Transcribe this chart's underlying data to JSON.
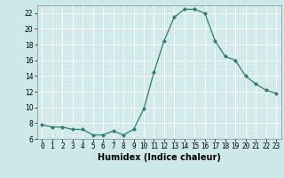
{
  "x": [
    0,
    1,
    2,
    3,
    4,
    5,
    6,
    7,
    8,
    9,
    10,
    11,
    12,
    13,
    14,
    15,
    16,
    17,
    18,
    19,
    20,
    21,
    22,
    23
  ],
  "y": [
    7.8,
    7.5,
    7.5,
    7.2,
    7.2,
    6.5,
    6.5,
    7.0,
    6.5,
    7.2,
    9.8,
    14.5,
    18.5,
    21.5,
    22.5,
    22.5,
    22.0,
    18.5,
    16.5,
    16.0,
    14.0,
    13.0,
    12.2,
    11.8
  ],
  "xlabel": "Humidex (Indice chaleur)",
  "xlim_min": -0.5,
  "xlim_max": 23.5,
  "ylim_min": 6,
  "ylim_max": 23,
  "yticks": [
    6,
    8,
    10,
    12,
    14,
    16,
    18,
    20,
    22
  ],
  "xticks": [
    0,
    1,
    2,
    3,
    4,
    5,
    6,
    7,
    8,
    9,
    10,
    11,
    12,
    13,
    14,
    15,
    16,
    17,
    18,
    19,
    20,
    21,
    22,
    23
  ],
  "xtick_labels": [
    "0",
    "1",
    "2",
    "3",
    "4",
    "5",
    "6",
    "7",
    "8",
    "9",
    "10",
    "11",
    "12",
    "13",
    "14",
    "15",
    "16",
    "17",
    "18",
    "19",
    "20",
    "21",
    "22",
    "23"
  ],
  "line_color": "#2e7d6e",
  "marker": "D",
  "marker_size": 2.0,
  "bg_color": "#cce8e8",
  "grid_color": "#ffffff",
  "grid_minor_color": "#dff0f0",
  "xlabel_fontsize": 7,
  "tick_fontsize": 5.5
}
